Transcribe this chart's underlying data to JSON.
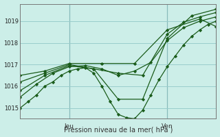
{
  "xlabel": "Pression niveau de la mer( hPa )",
  "background_color": "#cceee8",
  "grid_color": "#99cccc",
  "line_color": "#1a5c1a",
  "ylim": [
    1014.5,
    1019.8
  ],
  "xlim": [
    0,
    48
  ],
  "jeu_x": 12,
  "ven_x": 36,
  "yticks": [
    1015,
    1016,
    1017,
    1018,
    1019
  ],
  "series": [
    {
      "x": [
        0,
        2,
        4,
        6,
        8,
        10,
        12,
        14,
        16,
        18,
        20,
        22,
        24,
        26,
        28,
        30,
        32,
        34,
        36,
        38,
        40,
        42,
        44,
        46,
        48
      ],
      "y": [
        1015.0,
        1015.3,
        1015.6,
        1016.0,
        1016.2,
        1016.5,
        1016.7,
        1016.8,
        1016.85,
        1016.6,
        1016.0,
        1015.3,
        1014.7,
        1014.55,
        1014.5,
        1014.9,
        1015.6,
        1016.3,
        1016.9,
        1017.4,
        1017.9,
        1018.3,
        1018.6,
        1018.85,
        1019.0
      ]
    },
    {
      "x": [
        0,
        4,
        8,
        12,
        16,
        20,
        24,
        28,
        32,
        36,
        40,
        44,
        48
      ],
      "y": [
        1015.5,
        1016.1,
        1016.6,
        1016.9,
        1016.95,
        1016.8,
        1016.5,
        1016.7,
        1017.1,
        1018.1,
        1018.7,
        1019.0,
        1019.2
      ]
    },
    {
      "x": [
        0,
        6,
        12,
        18,
        24,
        30,
        36,
        42,
        48
      ],
      "y": [
        1015.8,
        1016.5,
        1016.95,
        1016.8,
        1015.4,
        1015.4,
        1018.2,
        1019.25,
        1019.55
      ]
    },
    {
      "x": [
        0,
        6,
        12,
        18,
        24,
        30,
        36,
        40,
        44,
        48
      ],
      "y": [
        1016.2,
        1016.6,
        1017.0,
        1016.8,
        1016.6,
        1016.5,
        1018.4,
        1018.95,
        1019.2,
        1019.4
      ]
    },
    {
      "x": [
        0,
        6,
        12,
        20,
        28,
        36,
        44,
        48
      ],
      "y": [
        1016.5,
        1016.7,
        1017.05,
        1017.05,
        1017.05,
        1018.6,
        1019.1,
        1018.75
      ]
    }
  ]
}
